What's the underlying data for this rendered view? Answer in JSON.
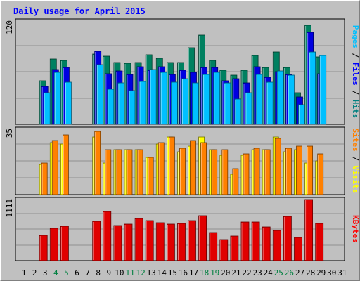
{
  "chart_data": {
    "type": "bar",
    "title": "Daily usage for April 2015",
    "days": [
      "1",
      "2",
      "3",
      "4",
      "5",
      "6",
      "7",
      "8",
      "9",
      "10",
      "11",
      "12",
      "13",
      "14",
      "15",
      "16",
      "17",
      "18",
      "19",
      "20",
      "21",
      "22",
      "23",
      "24",
      "25",
      "26",
      "27",
      "28",
      "29",
      "30",
      "31"
    ],
    "weekend_days": [
      "4",
      "5",
      "11",
      "12",
      "18",
      "19",
      "25",
      "26"
    ],
    "panels": [
      {
        "name": "hits-files-pages",
        "ymax_label": "120",
        "ymax": 120,
        "legend": [
          {
            "text": "Pages",
            "color": "#00c0ff"
          },
          {
            "text": " / ",
            "color": "#000000"
          },
          {
            "text": "Files",
            "color": "#0000ff"
          },
          {
            "text": " / ",
            "color": "#000000"
          },
          {
            "text": "Hits",
            "color": "#008080"
          }
        ],
        "series": [
          {
            "name": "Hits",
            "color": "#008060",
            "values": [
              null,
              null,
              51,
              76,
              74,
              null,
              null,
              82,
              79,
              72,
              71,
              72,
              81,
              77,
              72,
              72,
              89,
              104,
              74,
              63,
              57,
              63,
              80,
              66,
              84,
              66,
              37,
              115,
              78,
              null,
              null
            ]
          },
          {
            "name": "Files",
            "color": "#0000e0",
            "values": [
              null,
              null,
              44,
              64,
              66,
              null,
              null,
              85,
              59,
              62,
              58,
              67,
              63,
              67,
              58,
              63,
              60,
              66,
              66,
              51,
              53,
              48,
              67,
              55,
              61,
              58,
              32,
              107,
              59,
              null,
              null
            ]
          },
          {
            "name": "Pages",
            "color": "#00c0ff",
            "values": [
              null,
              null,
              37,
              60,
              49,
              null,
              null,
              69,
              41,
              48,
              39,
              50,
              64,
              60,
              49,
              53,
              48,
              58,
              60,
              48,
              29,
              37,
              58,
              49,
              62,
              57,
              23,
              84,
              80,
              null,
              null
            ]
          }
        ]
      },
      {
        "name": "visits-sites",
        "ymax_label": "35",
        "ymax": 35,
        "legend": [
          {
            "text": "Sites",
            "color": "#ff8000"
          },
          {
            "text": " / ",
            "color": "#000000"
          },
          {
            "text": "Visits",
            "color": "#ffff00"
          }
        ],
        "series": [
          {
            "name": "Visits",
            "color": "#ffff00",
            "values": [
              null,
              null,
              16,
              28,
              27,
              null,
              null,
              31,
              17,
              24,
              24,
              24,
              20,
              27,
              31,
              23,
              26,
              31,
              24,
              21,
              11,
              21,
              24,
              24,
              31,
              23,
              24,
              17,
              18,
              null,
              null
            ]
          },
          {
            "name": "Sites",
            "color": "#ff8000",
            "values": [
              null,
              null,
              17,
              29,
              32,
              null,
              null,
              34,
              24,
              24,
              24,
              24,
              20,
              28,
              31,
              25,
              29,
              28,
              24,
              24,
              14,
              22,
              25,
              24,
              30,
              25,
              26,
              26,
              22,
              null,
              null
            ]
          }
        ]
      },
      {
        "name": "kbytes",
        "ymax_label": "1111",
        "ymax": 1111,
        "legend": [
          {
            "text": "KBytes",
            "color": "#ff0000"
          }
        ],
        "series": [
          {
            "name": "KBytes",
            "color": "#e00000",
            "values": [
              null,
              null,
              454,
              583,
              620,
              null,
              null,
              716,
              889,
              644,
              661,
              767,
              722,
              690,
              664,
              673,
              729,
              815,
              511,
              387,
              441,
              702,
              700,
              614,
              548,
              809,
              423,
              1111,
              678,
              null,
              null
            ]
          }
        ]
      }
    ],
    "colors": {
      "background": "#c0c0c0",
      "title": "#0000ff",
      "grid": "#909090",
      "weekday_label": "#000000",
      "weekend_label": "#008040"
    }
  }
}
